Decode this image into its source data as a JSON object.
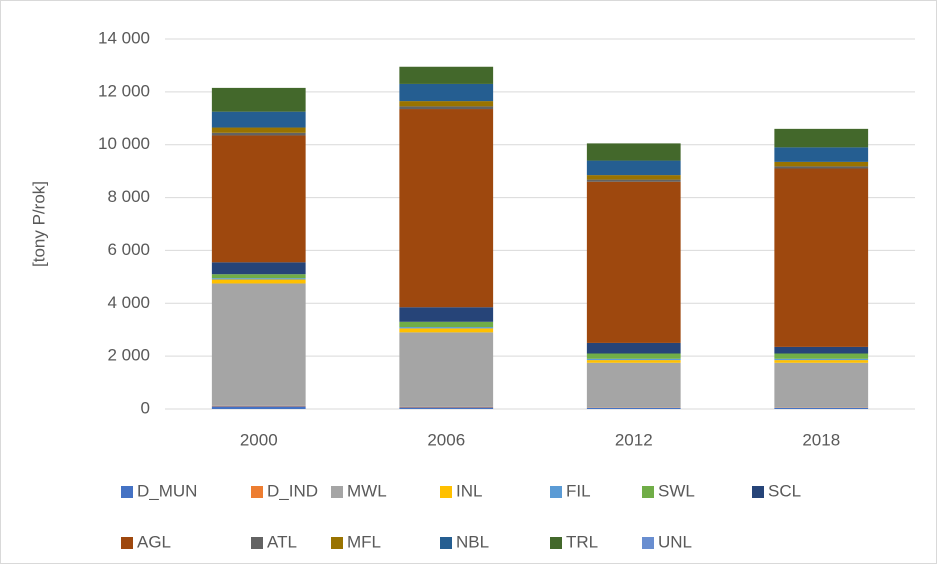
{
  "chart_data": {
    "type": "stacked_bar",
    "y_label": "[tony P/rok]",
    "categories": [
      "2000",
      "2006",
      "2012",
      "2018"
    ],
    "series": [
      {
        "name": "D_MUN",
        "color": "#4472c4",
        "values": [
          100,
          60,
          40,
          40
        ]
      },
      {
        "name": "D_IND",
        "color": "#ed7d31",
        "values": [
          20,
          20,
          10,
          10
        ]
      },
      {
        "name": "MWL",
        "color": "#a5a5a5",
        "values": [
          4630,
          2820,
          1700,
          1700
        ]
      },
      {
        "name": "INL",
        "color": "#ffc000",
        "values": [
          150,
          150,
          100,
          100
        ]
      },
      {
        "name": "FIL",
        "color": "#5b9bd5",
        "values": [
          50,
          50,
          50,
          50
        ]
      },
      {
        "name": "SWL",
        "color": "#70ad47",
        "values": [
          150,
          200,
          200,
          200
        ]
      },
      {
        "name": "SCL",
        "color": "#264478",
        "values": [
          450,
          550,
          400,
          250
        ]
      },
      {
        "name": "AGL",
        "color": "#9e480e",
        "values": [
          4800,
          7500,
          6100,
          6750
        ]
      },
      {
        "name": "ATL",
        "color": "#636363",
        "values": [
          100,
          100,
          80,
          80
        ]
      },
      {
        "name": "MFL",
        "color": "#997300",
        "values": [
          200,
          200,
          170,
          170
        ]
      },
      {
        "name": "NBL",
        "color": "#255e91",
        "values": [
          600,
          650,
          550,
          550
        ]
      },
      {
        "name": "TRL",
        "color": "#43682b",
        "values": [
          900,
          650,
          650,
          700
        ]
      },
      {
        "name": "UNL",
        "color": "#698ed0",
        "values": [
          0,
          0,
          0,
          0
        ]
      }
    ],
    "ylim": [
      0,
      14000
    ],
    "yticks": [
      0,
      {
        "value": 2000,
        "label": "2 000"
      },
      {
        "value": 4000,
        "label": "4 000"
      },
      {
        "value": 6000,
        "label": "6 000"
      },
      {
        "value": 8000,
        "label": "8 000"
      },
      {
        "value": 10000,
        "label": "10 000"
      },
      {
        "value": 12000,
        "label": "12 000"
      },
      {
        "value": 14000,
        "label": "14 000"
      }
    ],
    "grid": true,
    "legend": "bottom"
  }
}
